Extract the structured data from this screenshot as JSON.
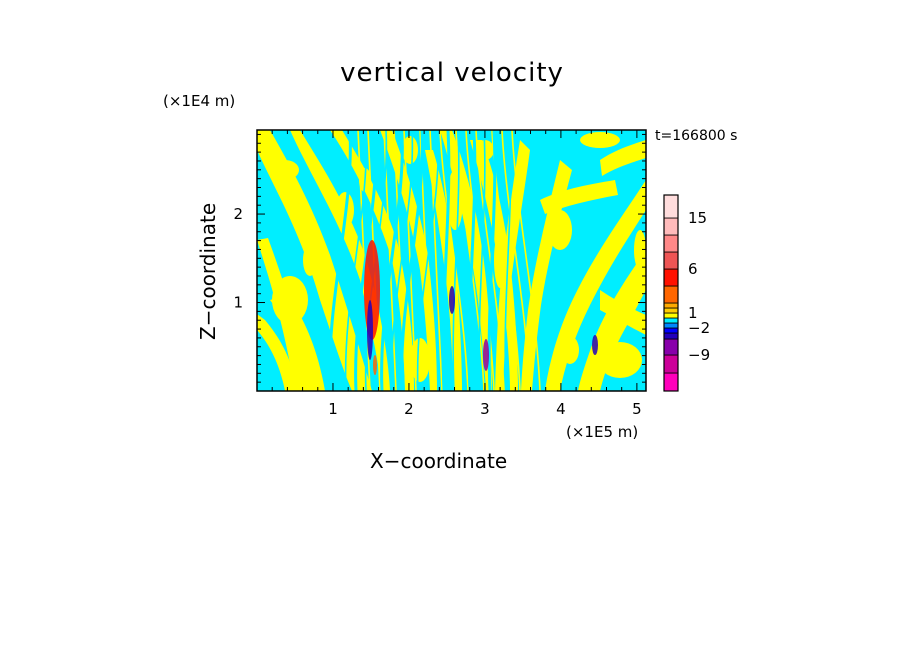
{
  "chart_data": {
    "type": "heatmap",
    "title": "vertical velocity",
    "xlabel": "X−coordinate",
    "ylabel": "Z−coordinate",
    "x_unit": "(×1E5 m)",
    "y_unit": "(×1E4 m)",
    "time_label": "t=166800 s",
    "xlim": [
      0,
      5.12
    ],
    "ylim": [
      0,
      2.95
    ],
    "x_ticks": [
      1,
      2,
      3,
      4,
      5
    ],
    "x_tick_labels": [
      "1",
      "2",
      "3",
      "4",
      "5"
    ],
    "y_ticks": [
      1,
      2
    ],
    "y_tick_labels": [
      "1",
      "2"
    ],
    "colors": {
      "positive": "#ffff00",
      "negative": "#00eeff",
      "frame": "#000000"
    },
    "colorbar": {
      "levels": [
        {
          "range": "-12..-9",
          "color": "#ff00bb"
        },
        {
          "range": "-9..-6",
          "color": "#cc0099"
        },
        {
          "range": "-6..-4",
          "color": "#8800aa"
        },
        {
          "range": "-4..-3",
          "color": "#2200bb"
        },
        {
          "range": "-3..-2",
          "color": "#0000ff"
        },
        {
          "range": "-2..-1",
          "color": "#0088ff"
        },
        {
          "range": "-1..0",
          "color": "#00eeff"
        },
        {
          "range": "0..1",
          "color": "#ffff00"
        },
        {
          "range": "1..2",
          "color": "#ffcc00"
        },
        {
          "range": "2..3",
          "color": "#ffaa00"
        },
        {
          "range": "3..6",
          "color": "#ff6600"
        },
        {
          "range": "6..9",
          "color": "#ff1100"
        },
        {
          "range": "9..12",
          "color": "#ee5555"
        },
        {
          "range": "12..15",
          "color": "#ff8888"
        },
        {
          "range": "15..18",
          "color": "#ffbbbb"
        },
        {
          "range": "18..21",
          "color": "#ffdddd"
        }
      ],
      "tick_labels": [
        "15",
        "6",
        "1",
        "−2",
        "−9"
      ]
    }
  }
}
